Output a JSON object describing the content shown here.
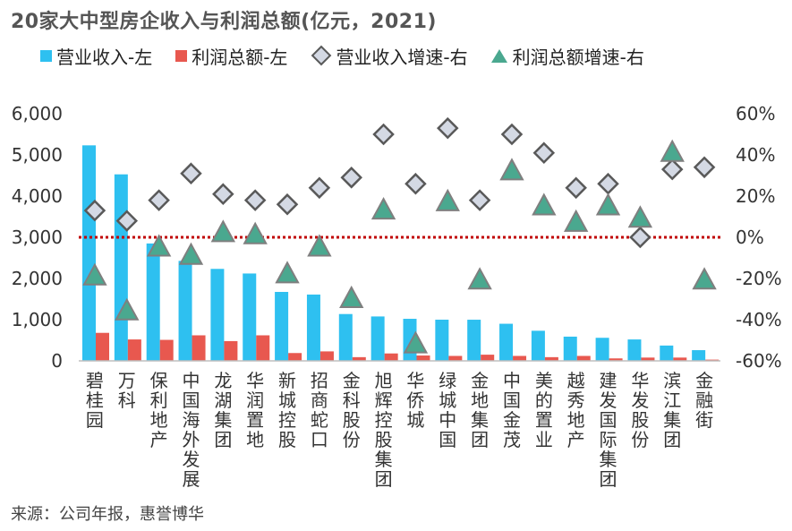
{
  "title": "20家大中型房企收入与利润总额(亿元，2021)",
  "source": "来源：公司年报，惠誉博华",
  "legend": {
    "revenue": "营业收入-左",
    "profit": "利润总额-左",
    "revenue_growth": "营业收入增速-右",
    "profit_growth": "利润总额增速-右"
  },
  "colors": {
    "revenue": "#2ec0f0",
    "profit": "#e8584f",
    "diamond_fill": "#d4d9e4",
    "diamond_edge": "#595959",
    "triangle_fill": "#4aa88f",
    "triangle_edge": "#7f7f7f",
    "zero_line": "#c00000"
  },
  "chart_data": {
    "type": "bar",
    "categories": [
      "碧桂园",
      "万科",
      "保利地产",
      "中国海外发展",
      "龙湖集团",
      "华润置地",
      "新城控股",
      "招商蛇口",
      "金科股份",
      "旭辉控股集团",
      "华侨城",
      "绿城中国",
      "金地集团",
      "中国金茂",
      "美的置业",
      "越秀地产",
      "建发国际集团",
      "华发股份",
      "滨江集团",
      "金融街"
    ],
    "series": [
      {
        "name": "营业收入-左",
        "axis": "left",
        "kind": "bar",
        "values": [
          5232,
          4528,
          2850,
          2428,
          2233,
          2121,
          1674,
          1610,
          1137,
          1078,
          1021,
          1000,
          999,
          901,
          731,
          588,
          560,
          520,
          372,
          260
        ]
      },
      {
        "name": "利润总额-左",
        "axis": "left",
        "kind": "bar",
        "values": [
          680,
          520,
          510,
          620,
          480,
          620,
          190,
          230,
          90,
          180,
          130,
          120,
          150,
          120,
          90,
          120,
          60,
          80,
          80,
          30
        ]
      },
      {
        "name": "营业收入增速-右",
        "axis": "right",
        "kind": "marker-diamond",
        "values": [
          13,
          8,
          18,
          31,
          21,
          18,
          16,
          24,
          29,
          50,
          26,
          53,
          18,
          50,
          41,
          24,
          26,
          0,
          33,
          34
        ]
      },
      {
        "name": "利润总额增速-右",
        "axis": "right",
        "kind": "marker-triangle",
        "values": [
          -19,
          -36,
          -5,
          -9,
          2,
          1,
          -18,
          -5,
          -30,
          13,
          -52,
          17,
          -21,
          32,
          15,
          7,
          15,
          9,
          41,
          -21
        ]
      }
    ],
    "y_left": {
      "min": 0,
      "max": 6000,
      "ticks": [
        "0",
        "1,000",
        "2,000",
        "3,000",
        "4,000",
        "5,000",
        "6,000"
      ]
    },
    "y_right": {
      "min": -60,
      "max": 60,
      "ticks": [
        "-60%",
        "-40%",
        "-20%",
        "0%",
        "20%",
        "40%",
        "60%"
      ]
    },
    "reference_line": {
      "axis": "right",
      "value": 0,
      "style": "dotted"
    },
    "grid": false,
    "legend_position": "top"
  }
}
